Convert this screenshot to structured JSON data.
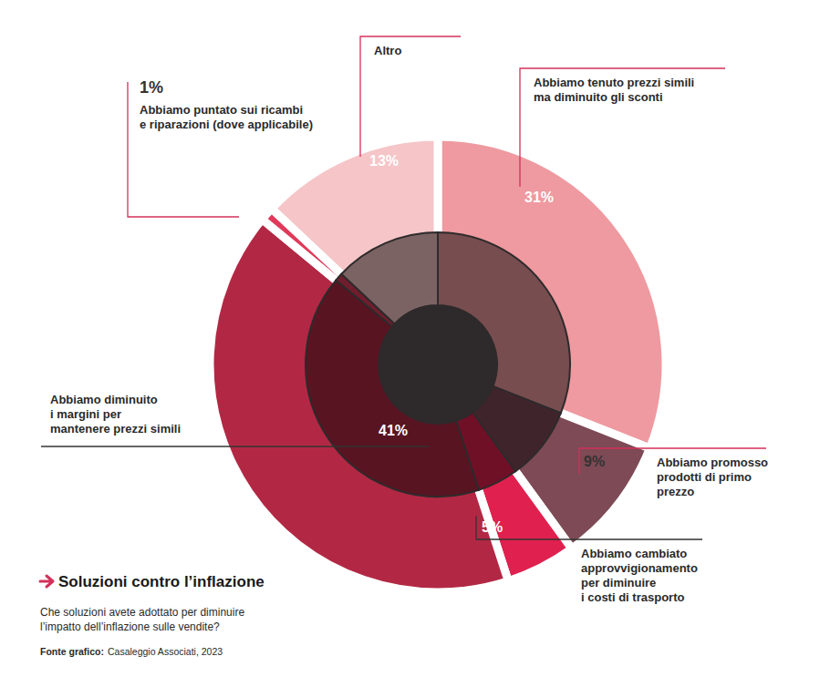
{
  "chart_data": {
    "type": "pie",
    "title": "Soluzioni contro l’inflazione",
    "subtitle": "Che soluzioni avete adottato per diminuire l’impatto dell’inflazione sulle vendite?",
    "source_label": "Fonte grafico:",
    "source": "Casaleggio Associati, 2023",
    "categories": [
      "Abbiamo tenuto prezzi simili ma diminuito gli sconti",
      "Abbiamo promosso prodotti di primo prezzo",
      "Abbiamo cambiato approvvigionamento per diminuire i costi di trasporto",
      "Abbiamo diminuito i margini per mantenere prezzi simili",
      "Abbiamo puntato sui ricambi e riparazioni (dove applicabile)",
      "Altro"
    ],
    "values": [
      31,
      9,
      5,
      41,
      1,
      13
    ],
    "value_labels": [
      "31%",
      "9%",
      "5%",
      "41%",
      "1%",
      "13%"
    ],
    "colors": [
      "#ee9aa0",
      "#7d4a55",
      "#e0204e",
      "#b22844",
      "#e03a5a",
      "#f5c5c8"
    ],
    "data_labels": true
  }
}
